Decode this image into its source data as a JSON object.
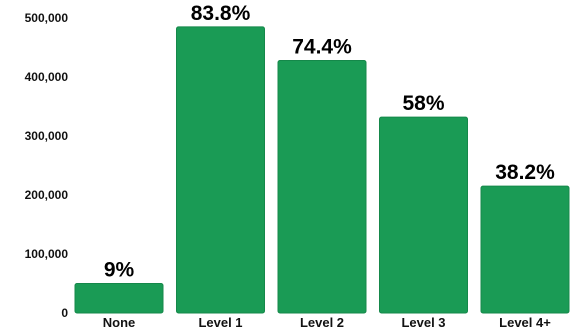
{
  "chart_data": {
    "type": "bar",
    "categories": [
      "None",
      "Level 1",
      "Level 2",
      "Level 3",
      "Level 4+"
    ],
    "values": [
      50000,
      485000,
      428000,
      332000,
      215000
    ],
    "data_labels": [
      "9%",
      "83.8%",
      "74.4%",
      "58%",
      "38.2%"
    ],
    "y_ticks": [
      "0",
      "100,000",
      "200,000",
      "300,000",
      "400,000",
      "500,000"
    ],
    "ylim": [
      0,
      500000
    ],
    "grid": false,
    "legend": "none",
    "colors": {
      "bar": "#1a9b55",
      "bar_stroke": "#15884a",
      "text": "#111111"
    }
  }
}
